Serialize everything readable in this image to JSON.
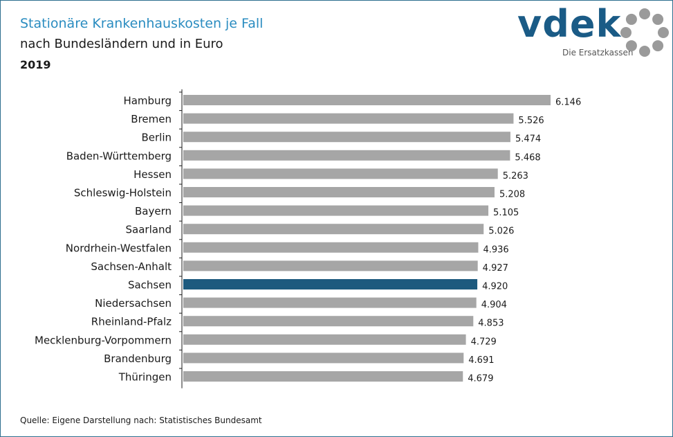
{
  "header": {
    "title": "Stationäre Krankenhauskosten je Fall",
    "subtitle": "nach Bundesländern und in Euro",
    "year": "2019"
  },
  "logo": {
    "wordmark": "vdek",
    "tagline": "Die Ersatzkassen"
  },
  "footer": {
    "source": "Quelle: Eigene Darstellung nach: Statistisches Bundesamt"
  },
  "colors": {
    "bar_default": "#a6a6a6",
    "bar_highlight": "#1d5a7e",
    "title": "#2a8cc0",
    "logo": "#1a5b86",
    "logo_ring": "#9a9a9a"
  },
  "chart_data": {
    "type": "bar",
    "orientation": "horizontal",
    "categories": [
      "Hamburg",
      "Bremen",
      "Berlin",
      "Baden-Württemberg",
      "Hessen",
      "Schleswig-Holstein",
      "Bayern",
      "Saarland",
      "Nordrhein-Westfalen",
      "Sachsen-Anhalt",
      "Sachsen",
      "Niedersachsen",
      "Rheinland-Pfalz",
      "Mecklenburg-Vorpommern",
      "Brandenburg",
      "Thüringen"
    ],
    "values": [
      6146,
      5526,
      5474,
      5468,
      5263,
      5208,
      5105,
      5026,
      4936,
      4927,
      4920,
      4904,
      4853,
      4729,
      4691,
      4679
    ],
    "value_labels": [
      "6.146",
      "5.526",
      "5.474",
      "5.468",
      "5.263",
      "5.208",
      "5.105",
      "5.026",
      "4.936",
      "4.927",
      "4.920",
      "4.904",
      "4.853",
      "4.729",
      "4.691",
      "4.679"
    ],
    "highlight": "Sachsen",
    "xlim": [
      0,
      6146
    ],
    "grid": false
  }
}
